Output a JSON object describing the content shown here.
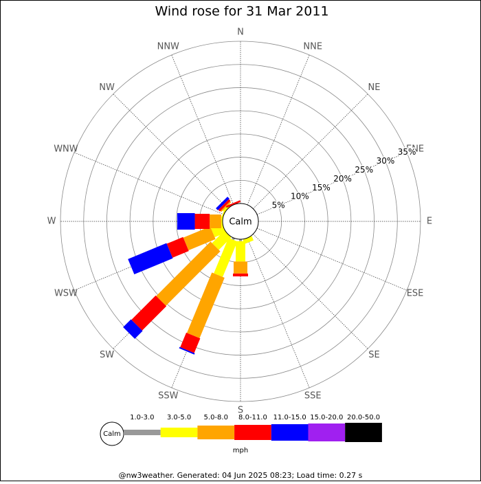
{
  "chart_data": {
    "type": "windrose",
    "title": "Wind rose for 31 Mar 2011",
    "categories": [
      "N",
      "NNE",
      "NE",
      "ENE",
      "E",
      "ESE",
      "SE",
      "SSE",
      "S",
      "SSW",
      "SW",
      "WSW",
      "W",
      "WNW",
      "NW",
      "NNW"
    ],
    "series": [
      {
        "name": "1.0-3.0",
        "color": "#999999",
        "values": [
          0,
          0,
          0,
          0,
          0,
          0,
          0,
          0,
          0.4,
          0.4,
          0,
          0,
          0,
          0,
          0,
          0
        ]
      },
      {
        "name": "3.0-5.0",
        "color": "#ffff00",
        "values": [
          0,
          0,
          0,
          0,
          0,
          0,
          0,
          1.0,
          4.4,
          8.3,
          3.8,
          2.6,
          0.3,
          0.3,
          0.5,
          0
        ]
      },
      {
        "name": "5.0-8.0",
        "color": "#ffa500",
        "values": [
          0,
          0,
          0,
          0,
          0,
          0,
          0,
          0,
          2.6,
          14.1,
          16.6,
          6.3,
          2.5,
          0,
          0.3,
          0
        ]
      },
      {
        "name": "8.0-11.0",
        "color": "#ff0000",
        "values": [
          0,
          0,
          0,
          0,
          0,
          0,
          0,
          0,
          0.6,
          3.4,
          7.4,
          3.8,
          3.2,
          0,
          0.5,
          0.4
        ]
      },
      {
        "name": "11.0-15.0",
        "color": "#0000ff",
        "values": [
          0,
          0,
          0,
          0,
          0,
          0,
          0,
          0,
          0,
          0.3,
          2.4,
          9.0,
          3.8,
          0,
          0.6,
          0
        ]
      },
      {
        "name": "15.0-20.0",
        "color": "#a020f0",
        "values": [
          0,
          0,
          0,
          0,
          0,
          0,
          0,
          0,
          0,
          0,
          0,
          0,
          0,
          0,
          0,
          0
        ]
      },
      {
        "name": "20.0-50.0",
        "color": "#000000",
        "values": [
          0,
          0,
          0,
          0,
          0,
          0,
          0,
          0,
          0,
          0,
          0,
          0,
          0,
          0,
          0,
          0
        ]
      }
    ],
    "rlim": [
      0,
      35
    ],
    "rticks": [
      {
        "value": 5,
        "label": "5%"
      },
      {
        "value": 10,
        "label": "10%"
      },
      {
        "value": 15,
        "label": "15%"
      },
      {
        "value": 20,
        "label": "20%"
      },
      {
        "value": 25,
        "label": "25%"
      },
      {
        "value": 30,
        "label": "30%"
      },
      {
        "value": 35,
        "label": "35%"
      }
    ],
    "calm_label": "Calm",
    "unit": "mph",
    "footer": "@nw3weather. Generated: 04 Jun 2025 08:23; Load time: 0.27 s"
  }
}
